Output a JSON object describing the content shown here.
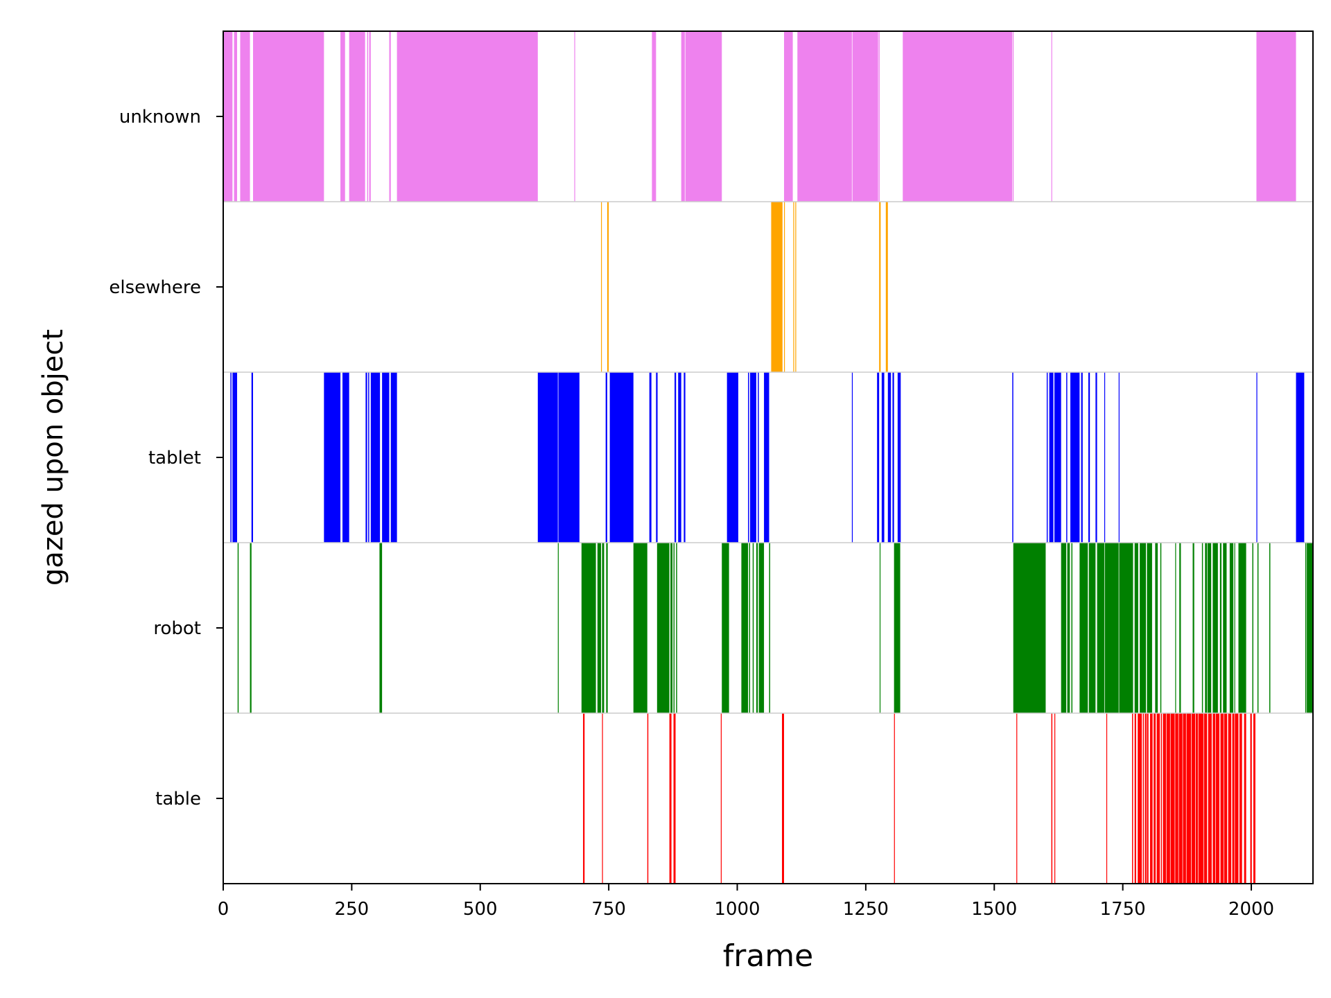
{
  "chart_data": {
    "type": "timeline",
    "xlabel": "frame",
    "ylabel": "gazed upon object",
    "xlim": [
      0,
      2120
    ],
    "x_ticks": [
      0,
      250,
      500,
      750,
      1000,
      1250,
      1500,
      1750,
      2000
    ],
    "x_tick_labels": [
      "0",
      "250",
      "500",
      "750",
      "1000",
      "1250",
      "1500",
      "1750",
      "2000"
    ],
    "grid": false,
    "categories": [
      "unknown",
      "elsewhere",
      "tablet",
      "robot",
      "table"
    ],
    "series": [
      {
        "name": "unknown",
        "color": "#ee82ee",
        "segments": [
          [
            0,
            18
          ],
          [
            21,
            27
          ],
          [
            33,
            52
          ],
          [
            58,
            196
          ],
          [
            228,
            237
          ],
          [
            245,
            276
          ],
          [
            280,
            282
          ],
          [
            284,
            287
          ],
          [
            323,
            326
          ],
          [
            338,
            612
          ],
          [
            683,
            684
          ],
          [
            834,
            842
          ],
          [
            891,
            898
          ],
          [
            899,
            970
          ],
          [
            1091,
            1108
          ],
          [
            1117,
            1223
          ],
          [
            1224,
            1274
          ],
          [
            1275,
            1277
          ],
          [
            1322,
            1535
          ],
          [
            1536,
            1537
          ],
          [
            1611,
            1612
          ],
          [
            2010,
            2087
          ]
        ]
      },
      {
        "name": "elsewhere",
        "color": "#ffa500",
        "segments": [
          [
            735,
            736
          ],
          [
            747,
            750
          ],
          [
            1066,
            1088
          ],
          [
            1091,
            1092
          ],
          [
            1109,
            1110
          ],
          [
            1113,
            1114
          ],
          [
            1276,
            1279
          ],
          [
            1289,
            1293
          ]
        ]
      },
      {
        "name": "tablet",
        "color": "#0000ff",
        "segments": [
          [
            14,
            16
          ],
          [
            18,
            27
          ],
          [
            55,
            58
          ],
          [
            196,
            228
          ],
          [
            232,
            245
          ],
          [
            277,
            280
          ],
          [
            282,
            284
          ],
          [
            287,
            305
          ],
          [
            309,
            323
          ],
          [
            326,
            338
          ],
          [
            612,
            651
          ],
          [
            652,
            693
          ],
          [
            744,
            747
          ],
          [
            752,
            798
          ],
          [
            829,
            833
          ],
          [
            842,
            845
          ],
          [
            878,
            881
          ],
          [
            885,
            891
          ],
          [
            896,
            899
          ],
          [
            980,
            1002
          ],
          [
            1021,
            1023
          ],
          [
            1025,
            1037
          ],
          [
            1040,
            1042
          ],
          [
            1052,
            1062
          ],
          [
            1223,
            1224
          ],
          [
            1272,
            1276
          ],
          [
            1281,
            1286
          ],
          [
            1293,
            1299
          ],
          [
            1302,
            1305
          ],
          [
            1312,
            1318
          ],
          [
            1535,
            1537
          ],
          [
            1602,
            1604
          ],
          [
            1607,
            1615
          ],
          [
            1617,
            1630
          ],
          [
            1640,
            1642
          ],
          [
            1648,
            1666
          ],
          [
            1669,
            1672
          ],
          [
            1683,
            1686
          ],
          [
            1697,
            1700
          ],
          [
            1714,
            1715
          ],
          [
            1742,
            1743
          ],
          [
            2010,
            2011
          ],
          [
            2087,
            2103
          ]
        ]
      },
      {
        "name": "robot",
        "color": "#008000",
        "segments": [
          [
            28,
            30
          ],
          [
            52,
            55
          ],
          [
            304,
            309
          ],
          [
            651,
            652
          ],
          [
            697,
            725
          ],
          [
            728,
            735
          ],
          [
            737,
            741
          ],
          [
            745,
            748
          ],
          [
            798,
            825
          ],
          [
            844,
            868
          ],
          [
            870,
            874
          ],
          [
            876,
            878
          ],
          [
            881,
            883
          ],
          [
            970,
            984
          ],
          [
            1008,
            1021
          ],
          [
            1023,
            1025
          ],
          [
            1030,
            1032
          ],
          [
            1037,
            1040
          ],
          [
            1042,
            1052
          ],
          [
            1062,
            1064
          ],
          [
            1277,
            1278
          ],
          [
            1305,
            1317
          ],
          [
            1537,
            1600
          ],
          [
            1630,
            1640
          ],
          [
            1642,
            1647
          ],
          [
            1650,
            1652
          ],
          [
            1666,
            1682
          ],
          [
            1684,
            1697
          ],
          [
            1700,
            1714
          ],
          [
            1715,
            1742
          ],
          [
            1743,
            1770
          ],
          [
            1773,
            1780
          ],
          [
            1783,
            1795
          ],
          [
            1797,
            1807
          ],
          [
            1813,
            1818
          ],
          [
            1823,
            1825
          ],
          [
            1852,
            1853
          ],
          [
            1860,
            1863
          ],
          [
            1886,
            1889
          ],
          [
            1904,
            1906
          ],
          [
            1910,
            1914
          ],
          [
            1915,
            1922
          ],
          [
            1925,
            1935
          ],
          [
            1939,
            1942
          ],
          [
            1945,
            1952
          ],
          [
            1958,
            1965
          ],
          [
            1967,
            1968
          ],
          [
            1975,
            1990
          ],
          [
            2002,
            2004
          ],
          [
            2012,
            2014
          ],
          [
            2035,
            2037
          ],
          [
            2105,
            2107
          ],
          [
            2108,
            2120
          ]
        ]
      },
      {
        "name": "table",
        "color": "#ff0000",
        "segments": [
          [
            700,
            703
          ],
          [
            737,
            738
          ],
          [
            825,
            827
          ],
          [
            868,
            872
          ],
          [
            876,
            880
          ],
          [
            968,
            969
          ],
          [
            1087,
            1091
          ],
          [
            1305,
            1306
          ],
          [
            1543,
            1544
          ],
          [
            1611,
            1613
          ],
          [
            1617,
            1618
          ],
          [
            1718,
            1719
          ],
          [
            1768,
            1770
          ],
          [
            1773,
            1776
          ],
          [
            1779,
            1787
          ],
          [
            1789,
            1791
          ],
          [
            1793,
            1796
          ],
          [
            1797,
            1800
          ],
          [
            1803,
            1808
          ],
          [
            1810,
            1814
          ],
          [
            1816,
            1822
          ],
          [
            1824,
            1826
          ],
          [
            1828,
            1834
          ],
          [
            1835,
            1842
          ],
          [
            1843,
            1851
          ],
          [
            1852,
            1858
          ],
          [
            1859,
            1866
          ],
          [
            1867,
            1873
          ],
          [
            1874,
            1883
          ],
          [
            1884,
            1891
          ],
          [
            1892,
            1896
          ],
          [
            1897,
            1907
          ],
          [
            1908,
            1914
          ],
          [
            1916,
            1923
          ],
          [
            1925,
            1930
          ],
          [
            1931,
            1938
          ],
          [
            1940,
            1946
          ],
          [
            1947,
            1953
          ],
          [
            1955,
            1961
          ],
          [
            1963,
            1967
          ],
          [
            1968,
            1975
          ],
          [
            1977,
            1982
          ],
          [
            1986,
            1990
          ],
          [
            1998,
            2001
          ],
          [
            2004,
            2008
          ]
        ]
      }
    ]
  }
}
